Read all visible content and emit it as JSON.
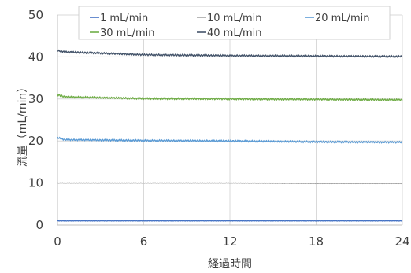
{
  "chart_data": {
    "type": "line",
    "xlabel": "経過時間",
    "ylabel": "流量（mL/min）",
    "xlim": [
      0,
      24
    ],
    "ylim": [
      0,
      50
    ],
    "xticks": [
      "0",
      "6",
      "12",
      "18",
      "24"
    ],
    "yticks": [
      "0",
      "10",
      "20",
      "30",
      "40",
      "50"
    ],
    "grid": true,
    "legend_position": "top",
    "series": [
      {
        "name": "1 mL/min",
        "color": "#4472c4",
        "x": [
          0,
          6,
          12,
          18,
          24
        ],
        "y": [
          1.0,
          1.0,
          1.0,
          1.0,
          1.0
        ]
      },
      {
        "name": "10 mL/min",
        "color": "#a5a5a5",
        "x": [
          0,
          6,
          12,
          18,
          24
        ],
        "y": [
          10.0,
          10.0,
          10.0,
          9.9,
          9.9
        ]
      },
      {
        "name": "20 mL/min",
        "color": "#5b9bd5",
        "x": [
          0,
          0.5,
          6,
          12,
          18,
          24
        ],
        "y": [
          20.8,
          20.3,
          20.1,
          20.0,
          19.8,
          19.7
        ]
      },
      {
        "name": "30 mL/min",
        "color": "#70ad47",
        "x": [
          0,
          0.5,
          6,
          12,
          18,
          24
        ],
        "y": [
          31.0,
          30.5,
          30.1,
          30.0,
          29.9,
          29.8
        ]
      },
      {
        "name": "40 mL/min",
        "color": "#44546a",
        "x": [
          0,
          0.5,
          6,
          12,
          18,
          24
        ],
        "y": [
          41.5,
          41.2,
          40.5,
          40.3,
          40.2,
          40.1
        ]
      }
    ]
  }
}
